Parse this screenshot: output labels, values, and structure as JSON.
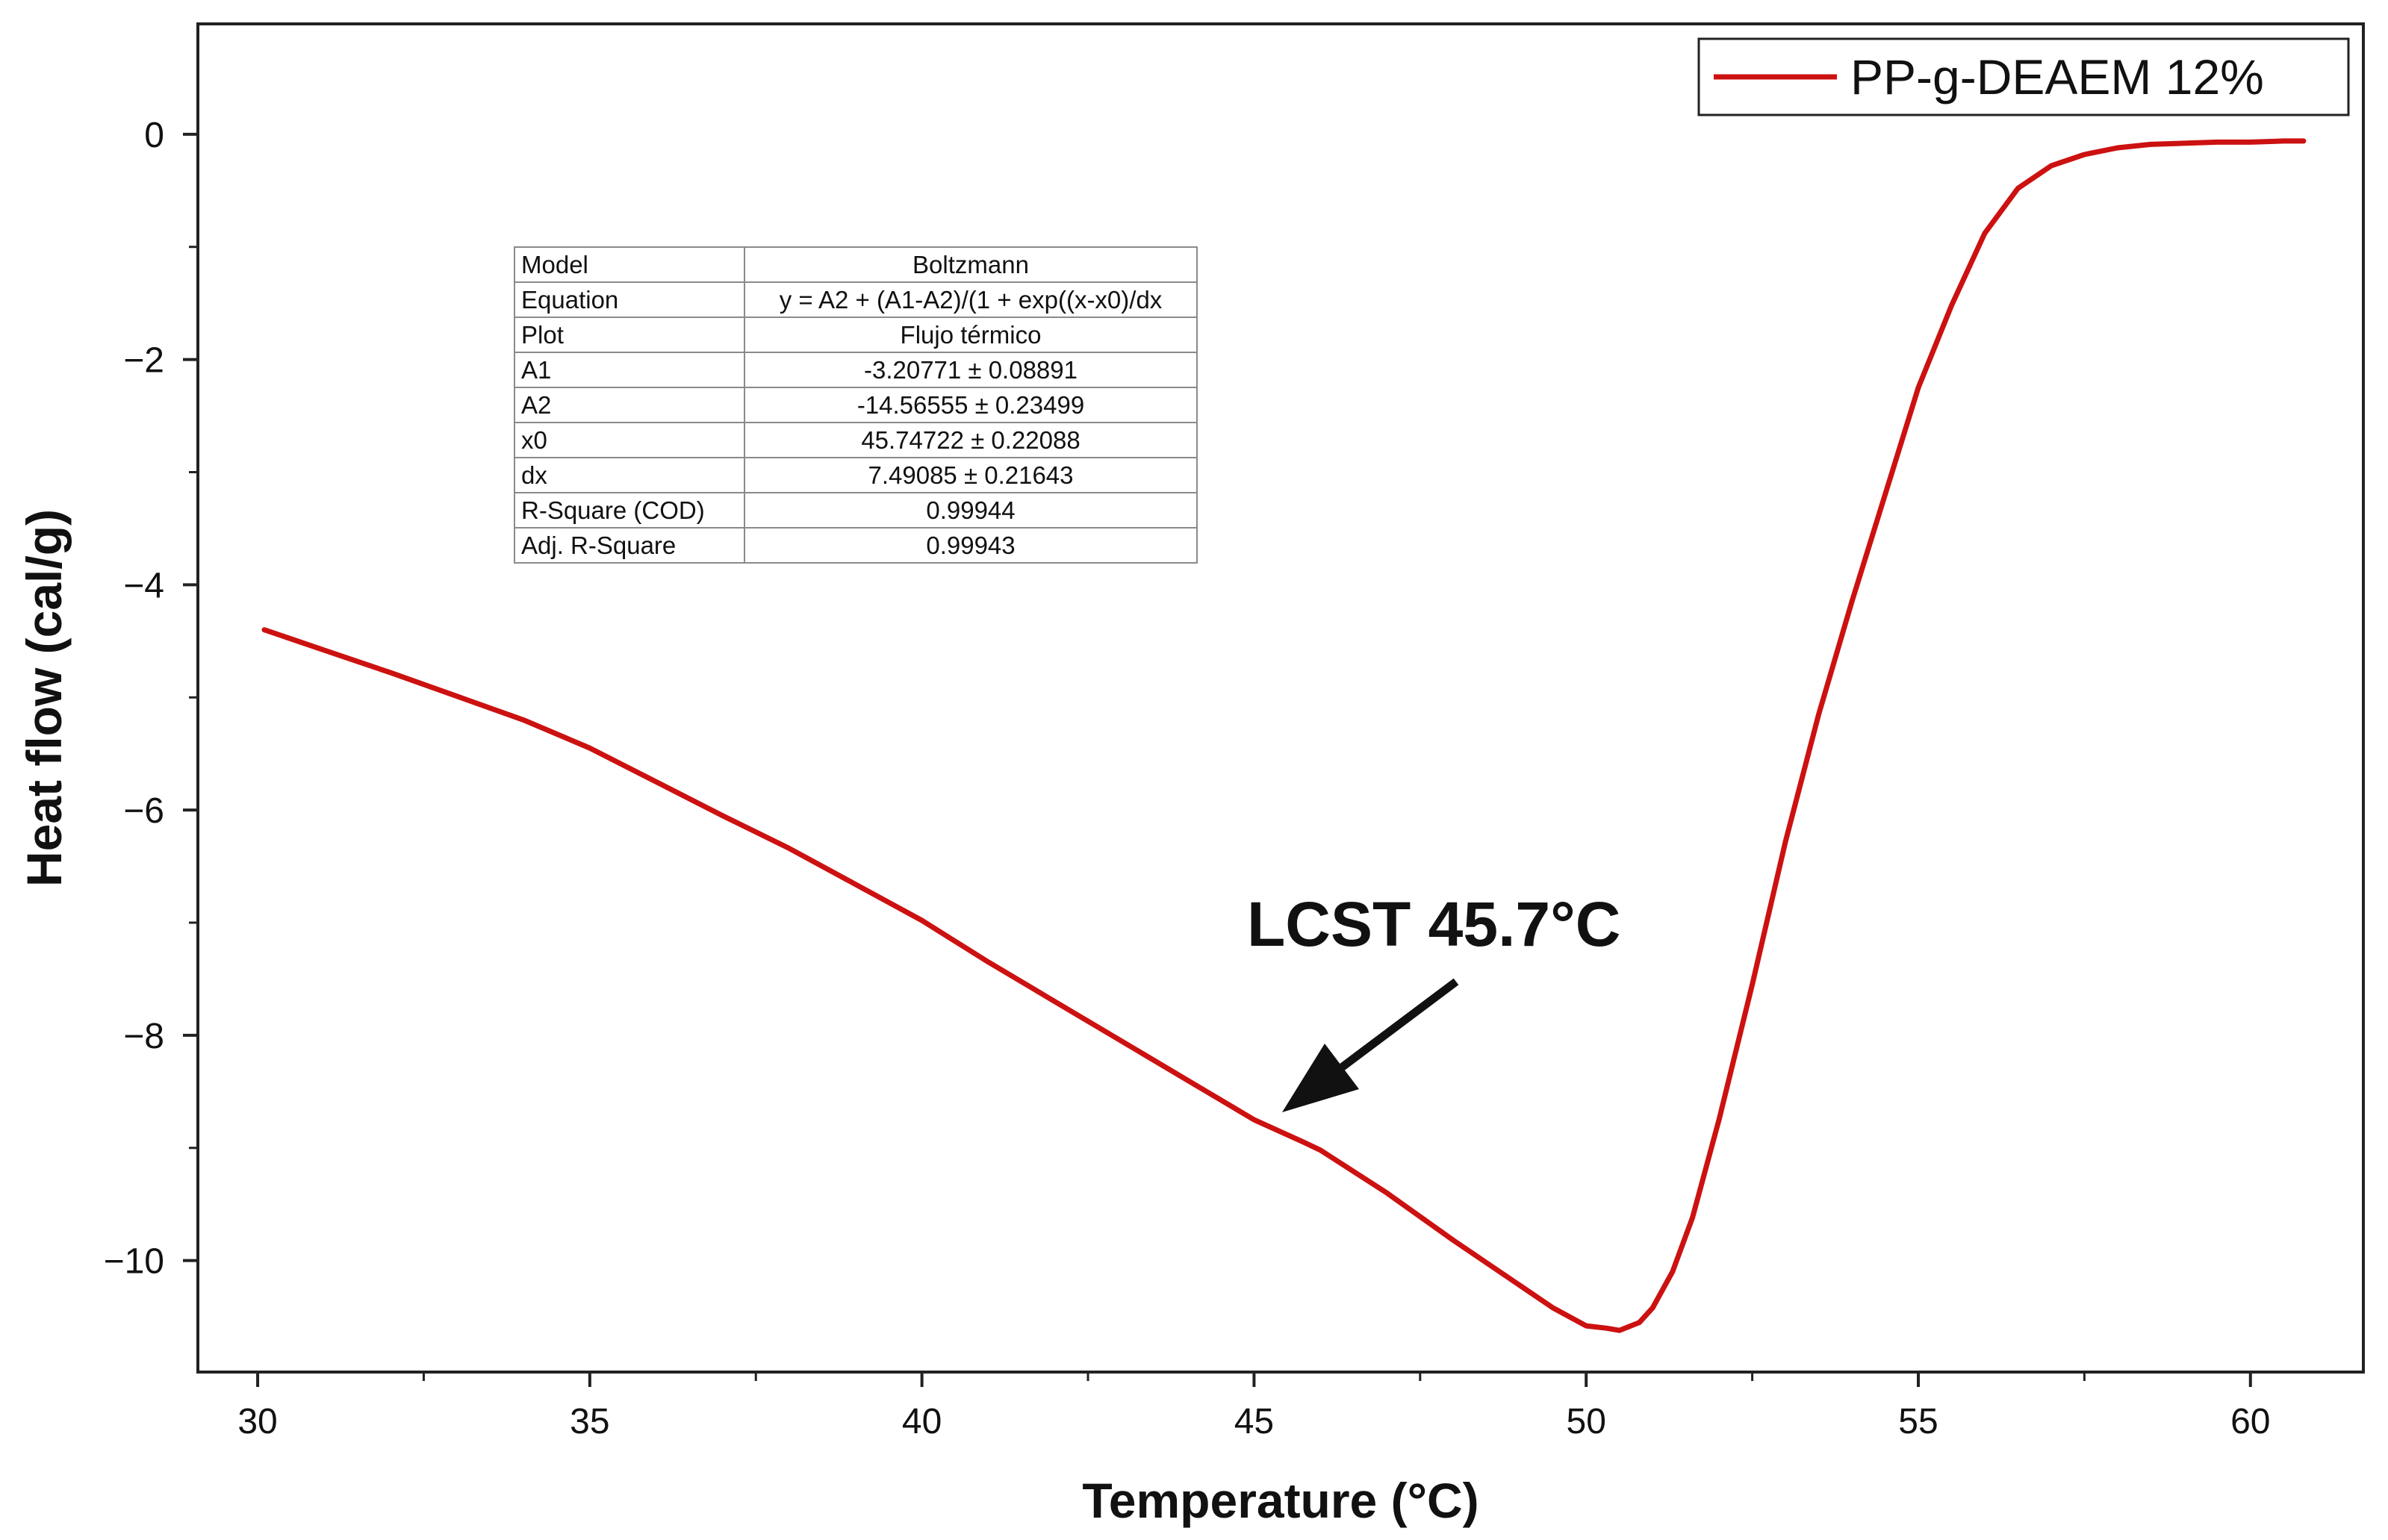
{
  "chart_data": {
    "type": "line",
    "title": "",
    "xlabel": "Temperature (°C)",
    "ylabel": "Heat flow (cal/g)",
    "xlim": [
      29.1,
      61.7
    ],
    "ylim": [
      -10.99,
      0.98
    ],
    "xticks": [
      30,
      35,
      40,
      45,
      50,
      55,
      60
    ],
    "xtick_labels": [
      "30",
      "35",
      "40",
      "45",
      "50",
      "55",
      "60"
    ],
    "yticks": [
      0,
      -2,
      -4,
      -6,
      -8,
      -10
    ],
    "ytick_labels": [
      "0",
      "−2",
      "−4",
      "−6",
      "−8",
      "−10"
    ],
    "grid": false,
    "legend_position": "top-right",
    "series": [
      {
        "name": "PP-g-DEAEM 12%",
        "color": "#cc1111",
        "x": [
          30.1,
          31,
          32,
          33,
          34,
          35,
          36,
          37,
          38,
          39,
          40,
          41,
          42,
          43,
          44,
          45,
          45.75,
          46,
          47,
          48,
          49,
          49.5,
          50,
          50.3,
          50.5,
          50.8,
          51,
          51.3,
          51.6,
          52,
          52.5,
          53,
          53.5,
          54,
          54.5,
          55,
          55.5,
          56,
          56.5,
          57,
          57.5,
          58,
          58.5,
          59,
          59.5,
          60,
          60.5,
          60.8
        ],
        "y": [
          -4.4,
          -4.58,
          -4.78,
          -4.99,
          -5.2,
          -5.45,
          -5.75,
          -6.05,
          -6.34,
          -6.66,
          -6.98,
          -7.35,
          -7.7,
          -8.05,
          -8.4,
          -8.75,
          -8.95,
          -9.02,
          -9.4,
          -9.82,
          -10.22,
          -10.42,
          -10.58,
          -10.6,
          -10.62,
          -10.55,
          -10.42,
          -10.1,
          -9.62,
          -8.75,
          -7.55,
          -6.28,
          -5.15,
          -4.15,
          -3.2,
          -2.25,
          -1.52,
          -0.88,
          -0.48,
          -0.28,
          -0.18,
          -0.12,
          -0.09,
          -0.08,
          -0.07,
          -0.07,
          -0.06,
          -0.06
        ]
      }
    ],
    "annotations": [
      {
        "text": "LCST 45.7°C",
        "x": 45.4,
        "y": -8.72
      }
    ]
  },
  "fit_table": {
    "rows": [
      {
        "label": "Model",
        "value": "Boltzmann"
      },
      {
        "label": "Equation",
        "value": "y = A2 + (A1-A2)/(1 + exp((x-x0)/dx"
      },
      {
        "label": "Plot",
        "value": "Flujo térmico"
      },
      {
        "label": "A1",
        "value": "-3.20771 ± 0.08891"
      },
      {
        "label": "A2",
        "value": "-14.56555 ± 0.23499"
      },
      {
        "label": "x0",
        "value": "45.74722 ± 0.22088"
      },
      {
        "label": "dx",
        "value": "7.49085 ± 0.21643"
      },
      {
        "label": "R-Square (COD)",
        "value": "0.99944"
      },
      {
        "label": "Adj. R-Square",
        "value": "0.99943"
      }
    ]
  }
}
